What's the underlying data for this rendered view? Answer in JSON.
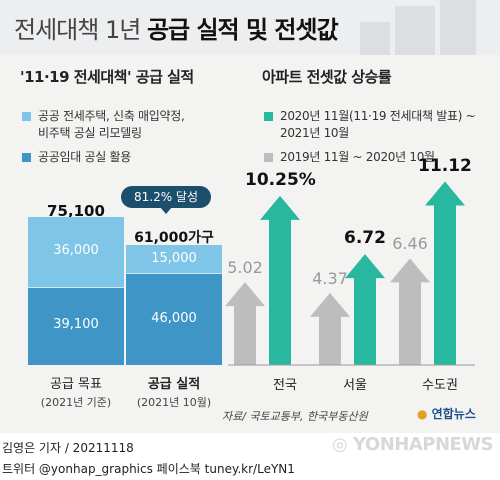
{
  "header": {
    "title_light": "전세대책 1년",
    "title_bold": "공급 실적 및 전셋값"
  },
  "left": {
    "title": "'11·19 전세대책' 공급 실적",
    "legend": [
      {
        "label": "공공 전세주택, 신축 매입약정,",
        "label2": "비주택 공실 리모델링",
        "color": "#7fc5e8"
      },
      {
        "label": "공공임대 공실 활용",
        "color": "#3f95c5"
      }
    ]
  },
  "right": {
    "title": "아파트 전셋값 상승률",
    "legend": [
      {
        "label": "2020년 11월(11·19 전세대책 발표) ~",
        "label2": "2021년 10월",
        "color": "#27b89f"
      },
      {
        "label": "2019년 11월 ~ 2020년 10월",
        "color": "#bdbdbd"
      }
    ]
  },
  "chart_data": [
    {
      "type": "bar",
      "title": "'11·19 전세대책' 공급 실적",
      "categories": [
        "공급 목표",
        "공급 실적"
      ],
      "category_subs": [
        "(2021년 기준)",
        "(2021년 10월)"
      ],
      "series": [
        {
          "name": "공공 전세주택, 신축 매입약정, 비주택 공실 리모델링",
          "values": [
            36000,
            15000
          ],
          "labels": [
            "36,000",
            "15,000"
          ],
          "color": "#7fc5e8"
        },
        {
          "name": "공공임대 공실 활용",
          "values": [
            39100,
            46000
          ],
          "labels": [
            "39,100",
            "46,000"
          ],
          "color": "#3f95c5"
        }
      ],
      "totals": [
        75100,
        61000
      ],
      "total_labels": [
        "75,100",
        "61,000가구"
      ],
      "annotation": "81.2% 달성"
    },
    {
      "type": "bar",
      "title": "아파트 전셋값 상승률",
      "categories": [
        "전국",
        "서울",
        "수도권"
      ],
      "series": [
        {
          "name": "2019년 11월 ~ 2020년 10월",
          "values": [
            5.02,
            4.37,
            6.46
          ],
          "labels": [
            "5.02",
            "4.37",
            "6.46"
          ],
          "color": "#bdbdbd"
        },
        {
          "name": "2020년 11월(11·19 전세대책 발표) ~ 2021년 10월",
          "values": [
            10.25,
            6.72,
            11.12
          ],
          "labels": [
            "10.25%",
            "6.72",
            "11.12"
          ],
          "color": "#27b89f"
        }
      ]
    }
  ],
  "source": "자료/ 국토교통부, 한국부동산원",
  "logo": "연합뉴스",
  "credit": "김영은 기자 / 20211118",
  "social": "트위터 @yonhap_graphics  페이스북 tuney.kr/LeYN1",
  "watermark": "YONHAPNEWS"
}
